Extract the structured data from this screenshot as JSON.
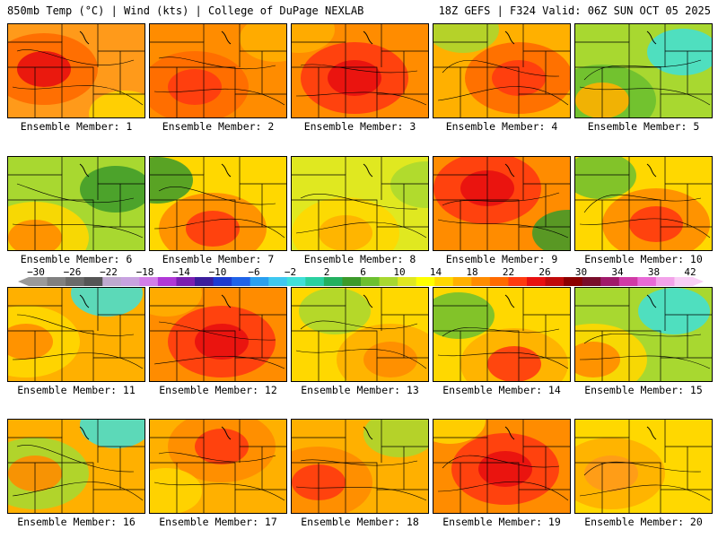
{
  "header": {
    "title_left": "850mb Temp (°C) | Wind (kts) | College of DuPage NEXLAB",
    "title_right": "18Z GEFS | F324 Valid: 06Z SUN OCT 05 2025"
  },
  "colorbar": {
    "ticks": [
      "−30",
      "−26",
      "−22",
      "−18",
      "−14",
      "−10",
      "−6",
      "−2",
      "2",
      "6",
      "10",
      "14",
      "18",
      "22",
      "26",
      "30",
      "34",
      "38",
      "42"
    ],
    "colors": [
      "#9a9a9a",
      "#808080",
      "#6a6a6a",
      "#555555",
      "#bfa9cf",
      "#c8a2e0",
      "#d27ee8",
      "#b038d6",
      "#7a1fb0",
      "#3b1d9c",
      "#1d3bd0",
      "#1f63e8",
      "#2aa0f0",
      "#3ec8f0",
      "#3fe0d8",
      "#2ad0a0",
      "#22b060",
      "#3c9a2a",
      "#6cc030",
      "#a8d830",
      "#e0e820",
      "#ffff00",
      "#ffd800",
      "#ffb000",
      "#ff8c00",
      "#ff6a00",
      "#ff3a10",
      "#e81010",
      "#c00a0a",
      "#8c0000",
      "#780e2a",
      "#a01a6a",
      "#d03aa6",
      "#e86ad6",
      "#f3a3ea",
      "#f9cff6"
    ]
  },
  "members": [
    {
      "label": "Ensemble Member: 1"
    },
    {
      "label": "Ensemble Member: 2"
    },
    {
      "label": "Ensemble Member: 3"
    },
    {
      "label": "Ensemble Member: 4"
    },
    {
      "label": "Ensemble Member: 5"
    },
    {
      "label": "Ensemble Member: 6"
    },
    {
      "label": "Ensemble Member: 7"
    },
    {
      "label": "Ensemble Member: 8"
    },
    {
      "label": "Ensemble Member: 9"
    },
    {
      "label": "Ensemble Member: 10"
    },
    {
      "label": "Ensemble Member: 11"
    },
    {
      "label": "Ensemble Member: 12"
    },
    {
      "label": "Ensemble Member: 13"
    },
    {
      "label": "Ensemble Member: 14"
    },
    {
      "label": "Ensemble Member: 15"
    },
    {
      "label": "Ensemble Member: 16"
    },
    {
      "label": "Ensemble Member: 17"
    },
    {
      "label": "Ensemble Member: 18"
    },
    {
      "label": "Ensemble Member: 19"
    },
    {
      "label": "Ensemble Member: 20"
    }
  ]
}
